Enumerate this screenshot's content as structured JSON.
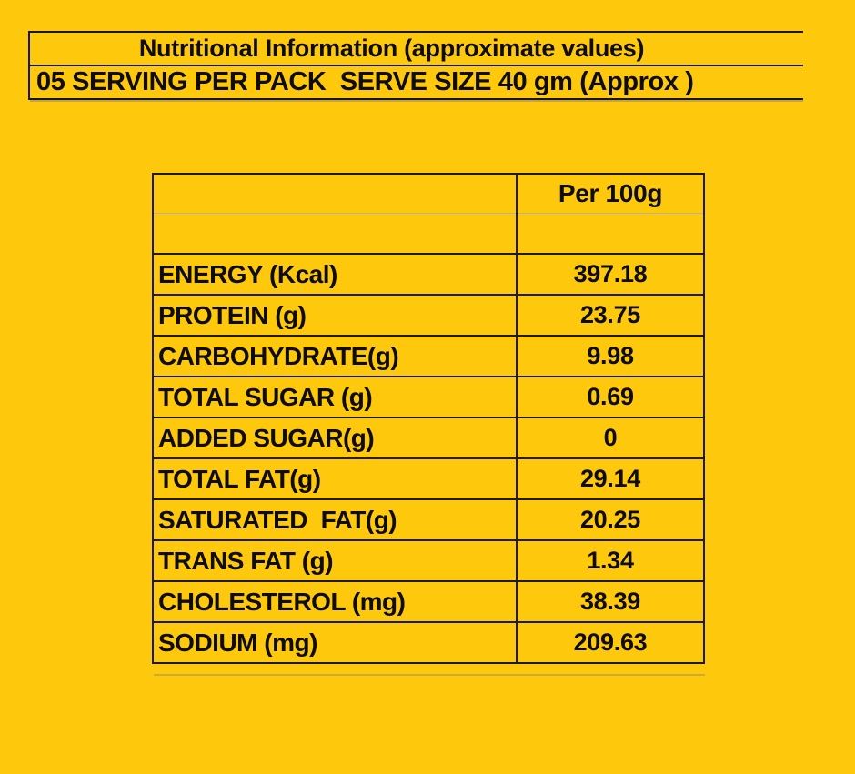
{
  "colors": {
    "background": "#fec80d",
    "text": "#0e0d0b",
    "grid_dark": "#1c1a12",
    "grid_light": "#b5b2a4"
  },
  "header": {
    "title": "Nutritional Information (approximate values)",
    "serving_line": "05 SERVING PER PACK  SERVE SIZE 40 gm (Approx )"
  },
  "table": {
    "column_header": "Per 100g",
    "rows": [
      {
        "label": "ENERGY (Kcal)",
        "value": "397.18"
      },
      {
        "label": "PROTEIN (g)",
        "value": "23.75"
      },
      {
        "label": "CARBOHYDRATE(g)",
        "value": "9.98"
      },
      {
        "label": "TOTAL SUGAR (g)",
        "value": "0.69"
      },
      {
        "label": "ADDED SUGAR(g)",
        "value": "0"
      },
      {
        "label": "TOTAL FAT(g)",
        "value": "29.14"
      },
      {
        "label": "SATURATED  FAT(g)",
        "value": "20.25"
      },
      {
        "label": "TRANS FAT (g)",
        "value": "1.34"
      },
      {
        "label": "CHOLESTEROL (mg)",
        "value": "38.39"
      },
      {
        "label": "SODIUM (mg)",
        "value": "209.63"
      }
    ]
  }
}
